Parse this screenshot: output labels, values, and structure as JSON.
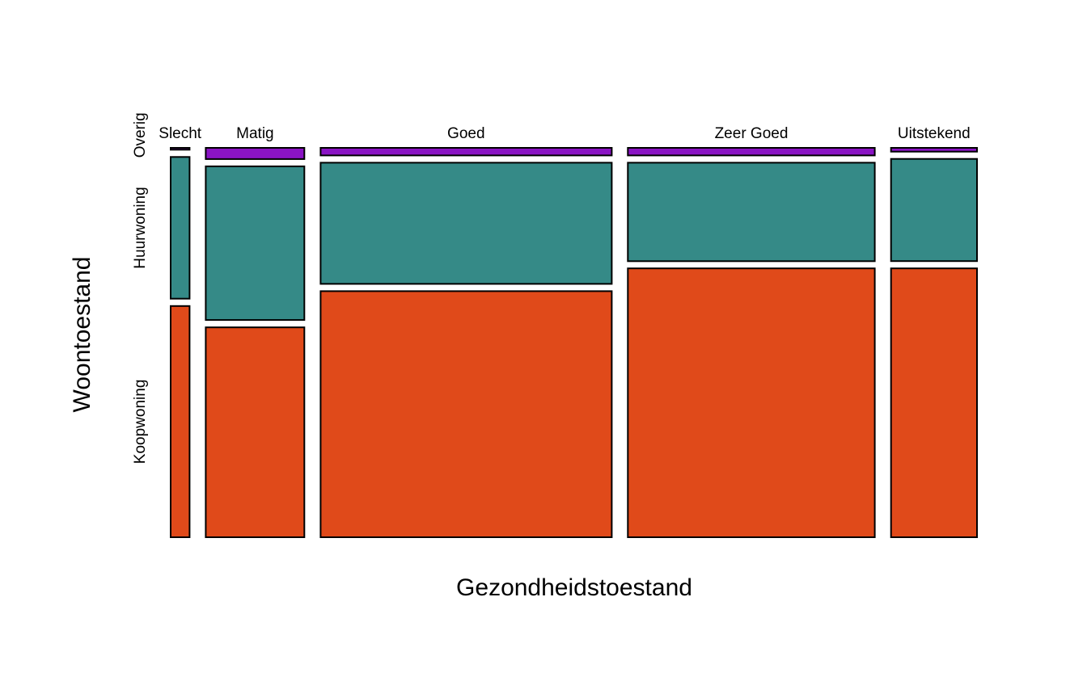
{
  "chart_data": {
    "type": "mosaic",
    "xlabel": "Gezondheidstoestand",
    "ylabel": "Woontoestand",
    "x_categories": [
      {
        "label": "Slecht",
        "proportion": 0.024
      },
      {
        "label": "Matig",
        "proportion": 0.125
      },
      {
        "label": "Goed",
        "proportion": 0.369
      },
      {
        "label": "Zeer Goed",
        "proportion": 0.313
      },
      {
        "label": "Uitstekend",
        "proportion": 0.109
      }
    ],
    "y_categories": [
      "Koopwoning",
      "Huurwoning",
      "Overig"
    ],
    "colors": {
      "Koopwoning": "#e04a1a",
      "Huurwoning": "#358a87",
      "Overig": "#8a14c4"
    },
    "conditional_proportions": {
      "Slecht": {
        "Koopwoning": 0.62,
        "Huurwoning": 0.38,
        "Overig": 0.005
      },
      "Matig": {
        "Koopwoning": 0.56,
        "Huurwoning": 0.41,
        "Overig": 0.03
      },
      "Goed": {
        "Koopwoning": 0.65,
        "Huurwoning": 0.32,
        "Overig": 0.02
      },
      "Zeer Goed": {
        "Koopwoning": 0.71,
        "Huurwoning": 0.26,
        "Overig": 0.02
      },
      "Uitstekend": {
        "Koopwoning": 0.71,
        "Huurwoning": 0.27,
        "Overig": 0.01
      }
    }
  }
}
